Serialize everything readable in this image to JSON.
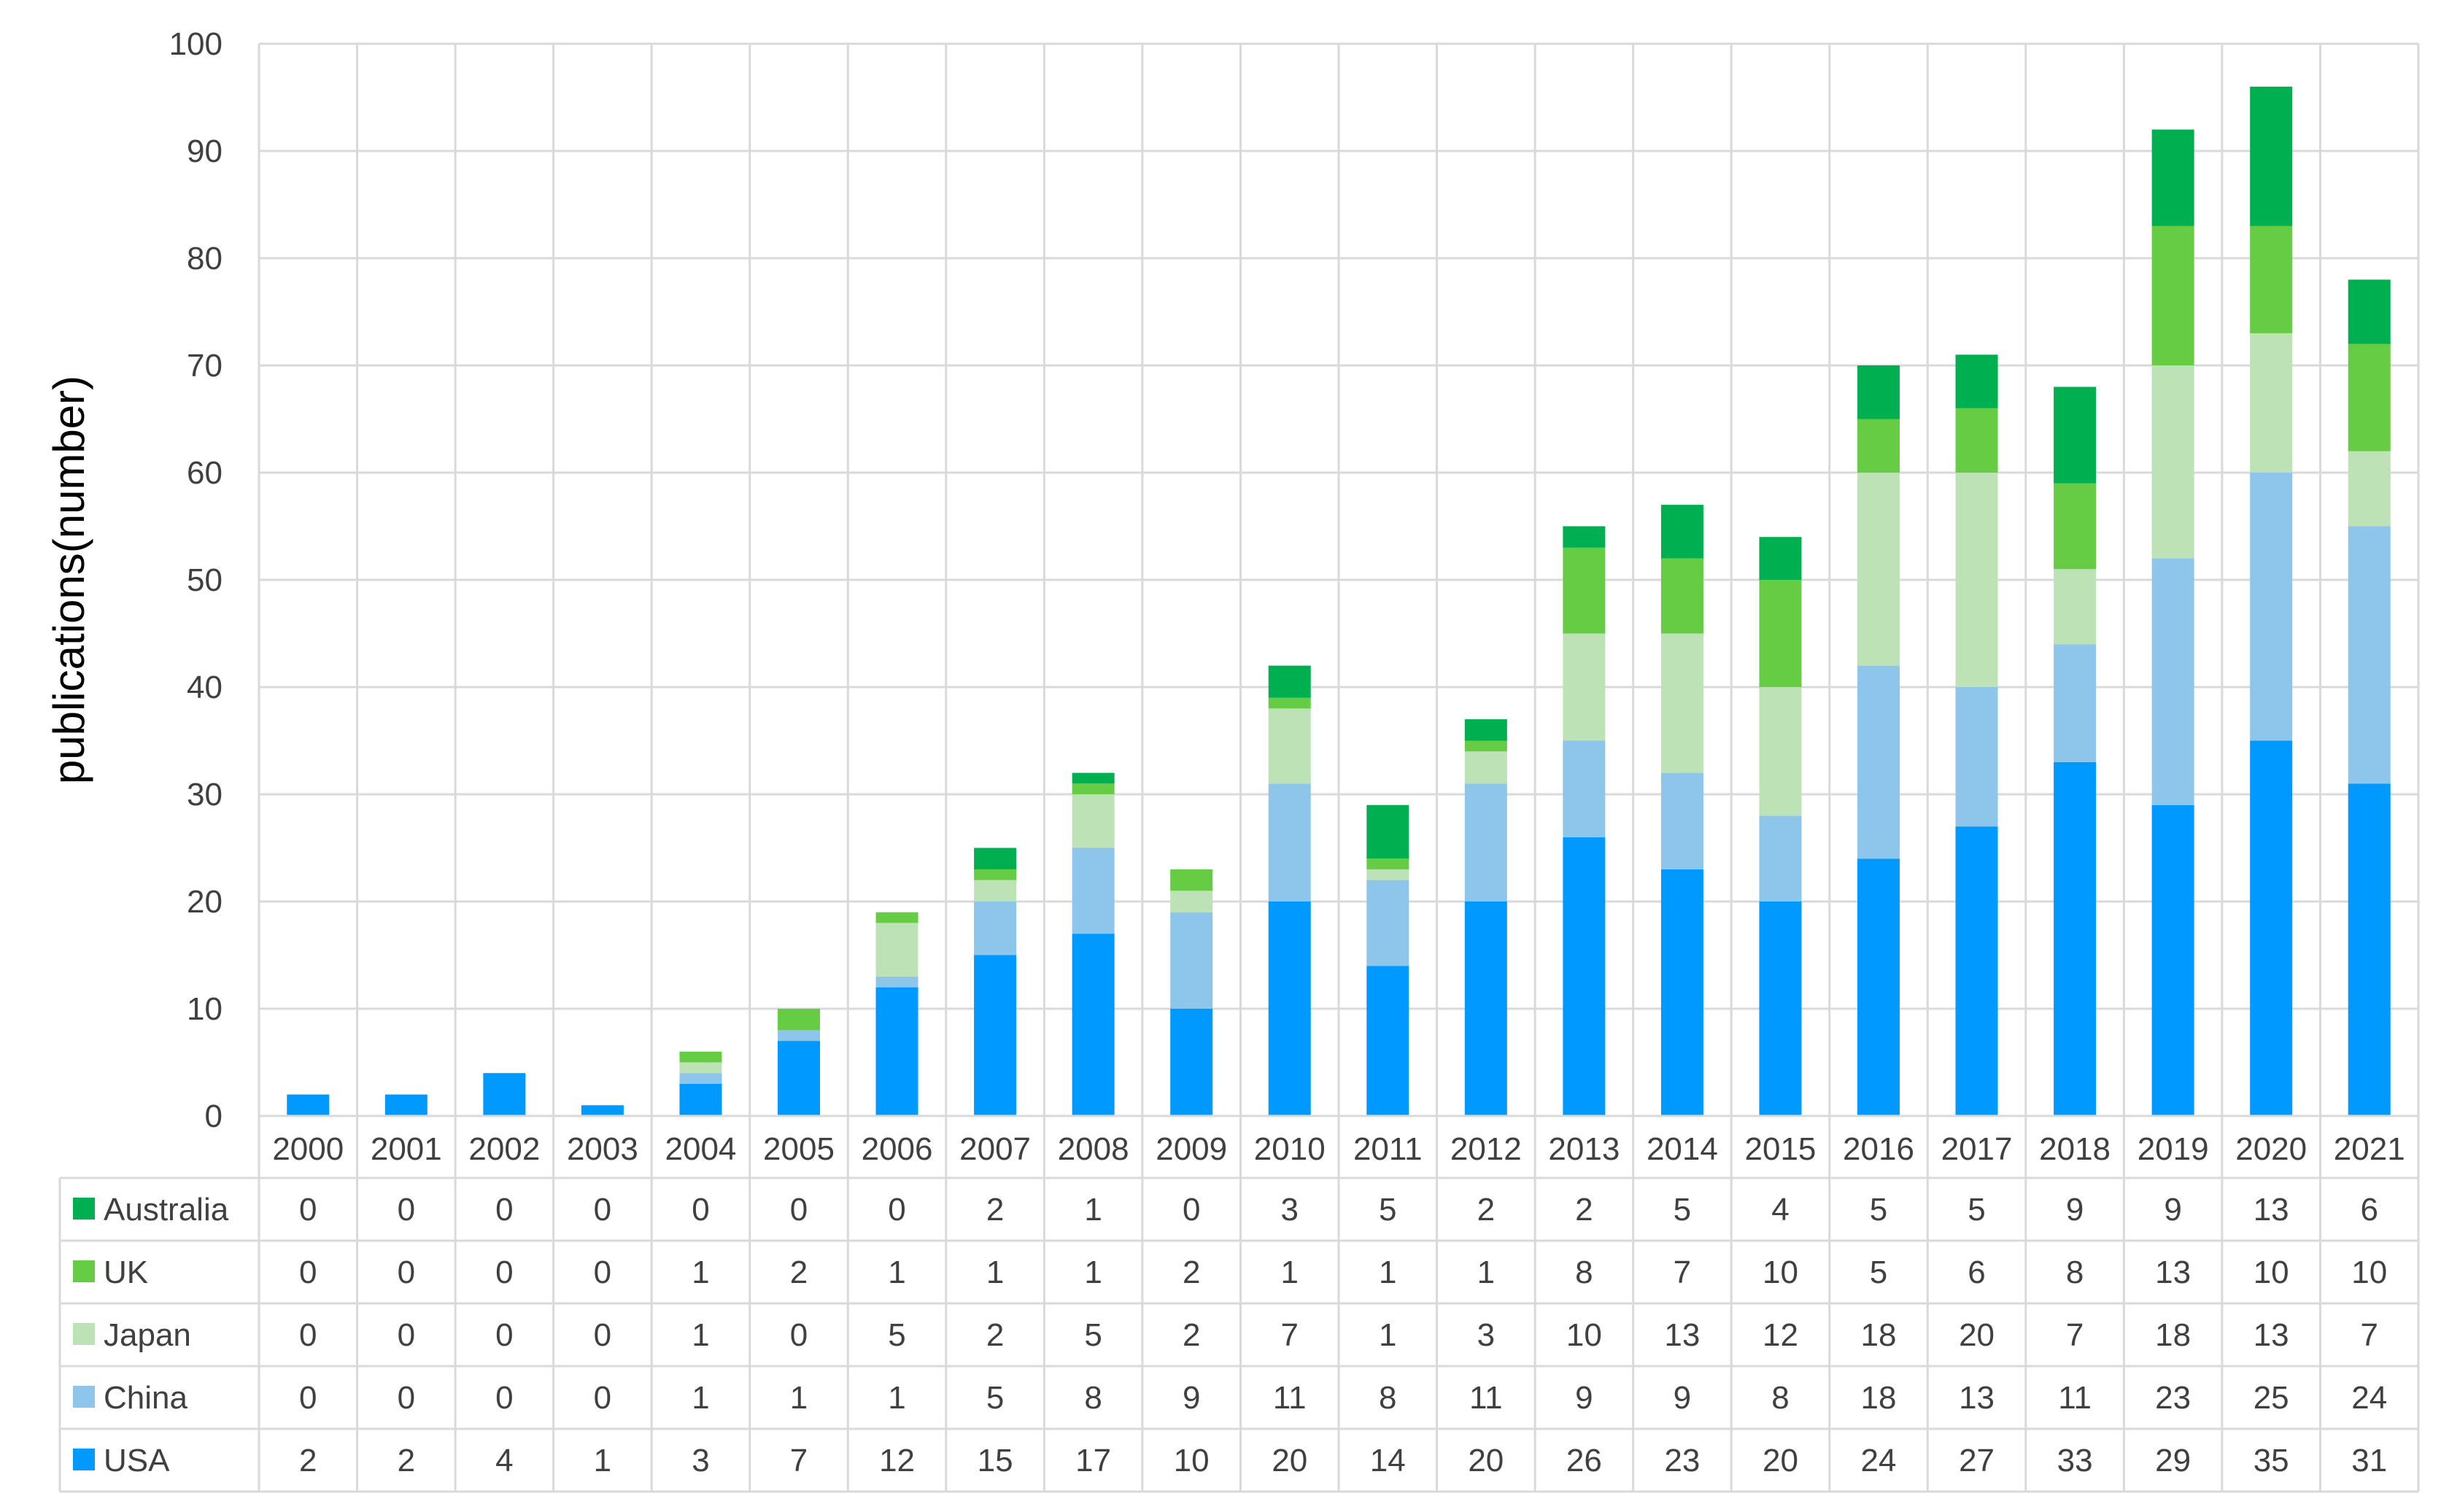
{
  "chart_data": {
    "type": "bar",
    "stacked": true,
    "categories": [
      "2000",
      "2001",
      "2002",
      "2003",
      "2004",
      "2005",
      "2006",
      "2007",
      "2008",
      "2009",
      "2010",
      "2011",
      "2012",
      "2013",
      "2014",
      "2015",
      "2016",
      "2017",
      "2018",
      "2019",
      "2020",
      "2021"
    ],
    "series": [
      {
        "name": "USA",
        "color": "#0099ff",
        "values": [
          2,
          2,
          4,
          1,
          3,
          7,
          12,
          15,
          17,
          10,
          20,
          14,
          20,
          26,
          23,
          20,
          24,
          27,
          33,
          29,
          35,
          31
        ]
      },
      {
        "name": "China",
        "color": "#8ec5ea",
        "values": [
          0,
          0,
          0,
          0,
          1,
          1,
          1,
          5,
          8,
          9,
          11,
          8,
          11,
          9,
          9,
          8,
          18,
          13,
          11,
          23,
          25,
          24
        ]
      },
      {
        "name": "Japan",
        "color": "#bde2b6",
        "values": [
          0,
          0,
          0,
          0,
          1,
          0,
          5,
          2,
          5,
          2,
          7,
          1,
          3,
          10,
          13,
          12,
          18,
          20,
          7,
          18,
          13,
          7
        ]
      },
      {
        "name": "UK",
        "color": "#66cc44",
        "values": [
          0,
          0,
          0,
          0,
          1,
          2,
          1,
          1,
          1,
          2,
          1,
          1,
          1,
          8,
          7,
          10,
          5,
          6,
          8,
          13,
          10,
          10
        ]
      },
      {
        "name": "Australia",
        "color": "#00b050",
        "values": [
          0,
          0,
          0,
          0,
          0,
          0,
          0,
          2,
          1,
          0,
          3,
          5,
          2,
          2,
          5,
          4,
          5,
          5,
          9,
          9,
          13,
          6
        ]
      }
    ],
    "table_row_order": [
      "Australia",
      "UK",
      "Japan",
      "China",
      "USA"
    ],
    "ylabel": "publications(number)",
    "xlabel": "",
    "ylim": [
      0,
      100
    ],
    "yticks": [
      0,
      10,
      20,
      30,
      40,
      50,
      60,
      70,
      80,
      90,
      100
    ],
    "grid": true,
    "legend": "data-table"
  }
}
